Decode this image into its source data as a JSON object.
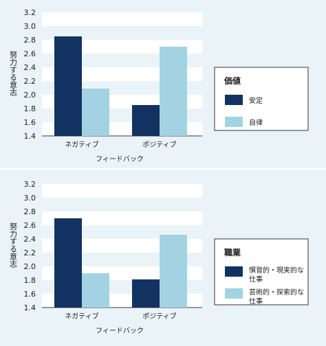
{
  "colors": {
    "background": "#eaf4f8",
    "stripe": "#ffffff",
    "divider": "#ffffff",
    "series_dark": "#123362",
    "series_light": "#a3d3e2",
    "text": "#1a1a1a"
  },
  "chart_data": [
    {
      "type": "bar",
      "categories": [
        "ネガティブ",
        "ポジティブ"
      ],
      "xlabel": "フィードバック",
      "ylabel": "努力する意志",
      "ylim": [
        1.4,
        3.2
      ],
      "yticks": [
        "1.4",
        "1.6",
        "1.8",
        "2.0",
        "2.2",
        "2.4",
        "2.6",
        "2.8",
        "3.0",
        "3.2"
      ],
      "legend_title": "価値",
      "legend_position": "right",
      "series": [
        {
          "name": "安定",
          "values": [
            2.85,
            1.85
          ],
          "color": "#123362"
        },
        {
          "name": "自律",
          "values": [
            2.09,
            2.7
          ],
          "color": "#a3d3e2"
        }
      ]
    },
    {
      "type": "bar",
      "categories": [
        "ネガティブ",
        "ポジティブ"
      ],
      "xlabel": "フィードバック",
      "ylabel": "努力する意志",
      "ylim": [
        1.4,
        3.2
      ],
      "yticks": [
        "1.4",
        "1.6",
        "1.8",
        "2.0",
        "2.2",
        "2.4",
        "2.6",
        "2.8",
        "3.0",
        "3.2"
      ],
      "legend_title": "職業",
      "legend_position": "right",
      "series": [
        {
          "name": "慣習的・現実的な仕事",
          "label_lines": [
            "慣習的・現実的な",
            "仕事"
          ],
          "values": [
            2.7,
            1.81
          ],
          "color": "#123362"
        },
        {
          "name": "芸術的・探索的な仕事",
          "label_lines": [
            "芸術的・探索的な",
            "仕事"
          ],
          "values": [
            1.9,
            2.46
          ],
          "color": "#a3d3e2"
        }
      ]
    }
  ]
}
